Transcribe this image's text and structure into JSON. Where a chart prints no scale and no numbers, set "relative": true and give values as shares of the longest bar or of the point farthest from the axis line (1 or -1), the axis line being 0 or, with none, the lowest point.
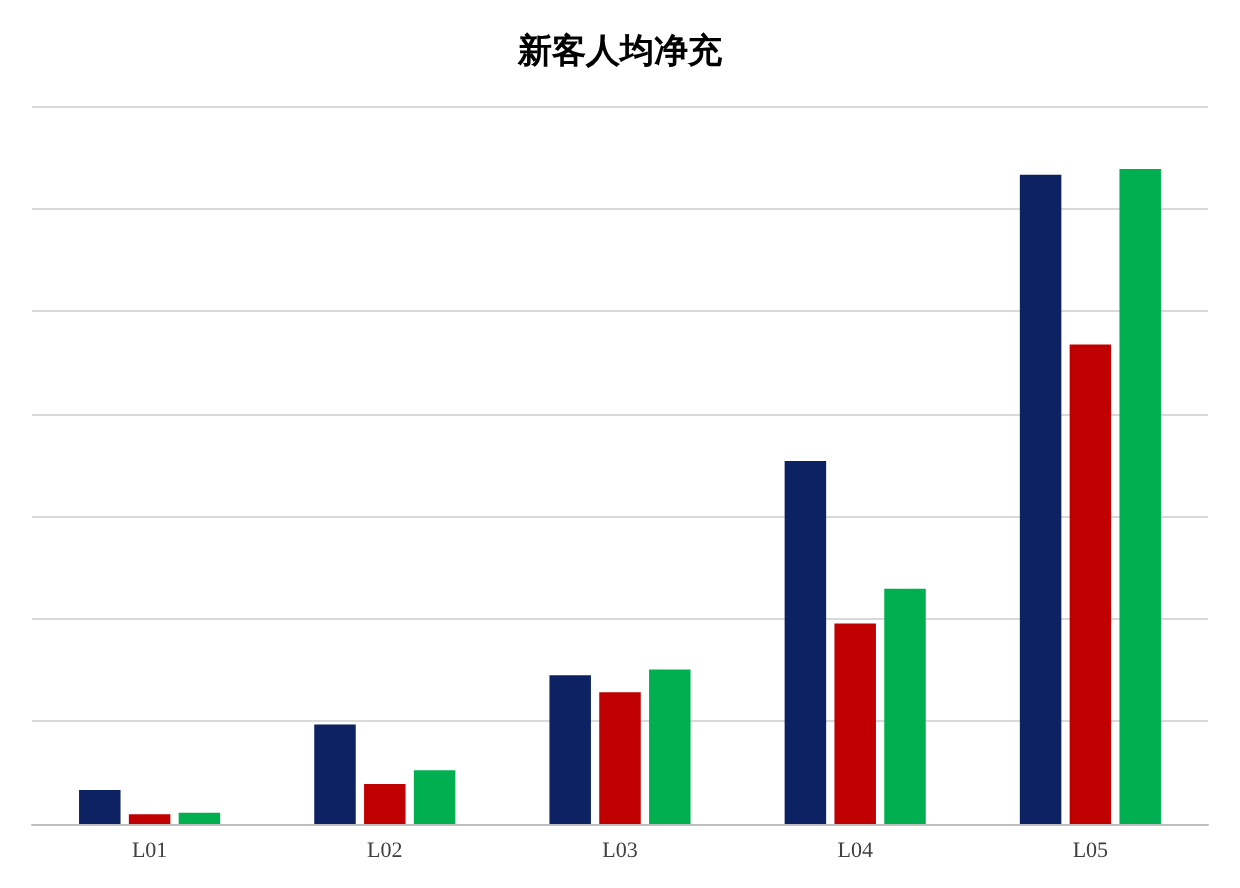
{
  "chart_data": {
    "type": "bar",
    "title": "新客人均净充",
    "relative": true,
    "grid": "y",
    "categories": [
      "L01",
      "L02",
      "L03",
      "L04",
      "L05"
    ],
    "series": [
      {
        "color": "#0d2263",
        "values": [
          0.052,
          0.152,
          0.227,
          0.554,
          0.991
        ]
      },
      {
        "color": "#c00000",
        "values": [
          0.015,
          0.061,
          0.201,
          0.306,
          0.732
        ]
      },
      {
        "color": "#00b050",
        "values": [
          0.017,
          0.082,
          0.236,
          0.359,
          1
        ]
      }
    ]
  }
}
